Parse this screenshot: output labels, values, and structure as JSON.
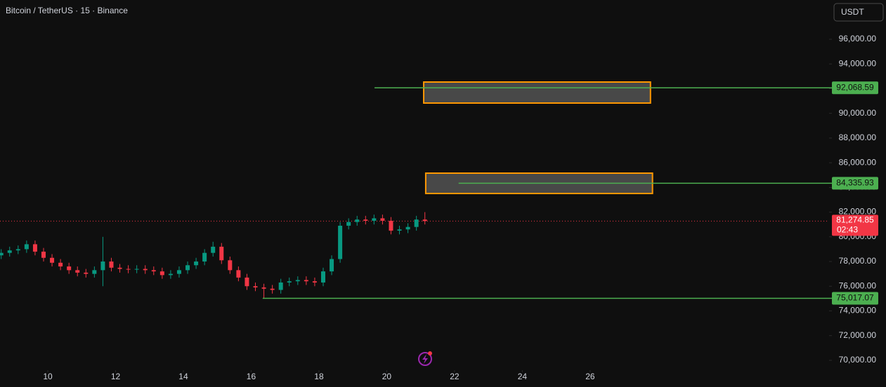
{
  "chart_data": {
    "type": "candlestick",
    "title": "Bitcoin / TetherUS · 15 · Binance",
    "currency": "USDT",
    "x": [
      8.625,
      8.875,
      9.125,
      9.375,
      9.625,
      9.875,
      10.125,
      10.375,
      10.625,
      10.875,
      11.125,
      11.375,
      11.625,
      11.875,
      12.125,
      12.375,
      12.625,
      12.875,
      13.125,
      13.375,
      13.625,
      13.875,
      14.125,
      14.375,
      14.625,
      14.875,
      15.125,
      15.375,
      15.625,
      15.875,
      16.125,
      16.375,
      16.625,
      16.875,
      17.125,
      17.375,
      17.625,
      17.875,
      18.125,
      18.375,
      18.625,
      18.875,
      19.125,
      19.375,
      19.625,
      19.875,
      20.125,
      20.375,
      20.625,
      20.875,
      21.125
    ],
    "open": [
      78500,
      78700,
      78900,
      79000,
      79400,
      78800,
      78300,
      77900,
      77600,
      77300,
      77100,
      77000,
      77300,
      78000,
      77500,
      77400,
      77350,
      77400,
      77300,
      77200,
      76900,
      77000,
      77300,
      77700,
      78000,
      78700,
      79200,
      78100,
      77300,
      76700,
      76000,
      75900,
      75800,
      75700,
      76300,
      76400,
      76500,
      76400,
      76300,
      77200,
      78200,
      80900,
      81200,
      81400,
      81300,
      81500,
      81300,
      80500,
      80600,
      80800,
      81400
    ],
    "high": [
      79000,
      79200,
      79300,
      79700,
      79700,
      79100,
      78600,
      78200,
      77900,
      77600,
      77400,
      77600,
      80000,
      78300,
      77800,
      77700,
      77700,
      77700,
      77600,
      77500,
      77300,
      77600,
      78000,
      78300,
      79000,
      79600,
      79500,
      78400,
      77600,
      77000,
      76300,
      76200,
      76100,
      76600,
      76700,
      76800,
      76800,
      76700,
      77500,
      78500,
      81200,
      81500,
      81700,
      81700,
      81800,
      81800,
      81600,
      80900,
      81100,
      81700,
      82000
    ],
    "low": [
      78200,
      78400,
      78600,
      78700,
      78500,
      78000,
      77600,
      77300,
      77000,
      76800,
      76700,
      76700,
      76000,
      77200,
      77100,
      77050,
      77050,
      77000,
      76900,
      76600,
      76600,
      76700,
      77000,
      77400,
      77700,
      78400,
      77800,
      77000,
      76400,
      75700,
      75600,
      75000,
      75400,
      75400,
      76000,
      76100,
      76100,
      76000,
      76000,
      76900,
      77900,
      80600,
      80900,
      81000,
      81000,
      81000,
      80200,
      80200,
      80300,
      80500,
      81000
    ],
    "close": [
      78700,
      78900,
      79000,
      79400,
      78800,
      78300,
      77900,
      77600,
      77300,
      77100,
      77000,
      77300,
      78000,
      77500,
      77400,
      77350,
      77400,
      77300,
      77200,
      76900,
      77000,
      77300,
      77700,
      78000,
      78700,
      79200,
      78100,
      77300,
      76700,
      76000,
      75900,
      75800,
      75700,
      76300,
      76400,
      76500,
      76400,
      76300,
      77200,
      78200,
      80900,
      81200,
      81400,
      81300,
      81500,
      81300,
      80500,
      80600,
      80800,
      81400,
      81274.85
    ],
    "up_color": "#089981",
    "down_color": "#f23645",
    "xlim": [
      8.59,
      33.05
    ],
    "ylim": [
      69200,
      99180
    ],
    "xticks": [
      10,
      12,
      14,
      16,
      18,
      20,
      22,
      24,
      26
    ],
    "yticks": [
      {
        "value": 70000,
        "label": "70,000.00"
      },
      {
        "value": 72000,
        "label": "72,000.00"
      },
      {
        "value": 74000,
        "label": "74,000.00"
      },
      {
        "value": 76000,
        "label": "76,000.00"
      },
      {
        "value": 78000,
        "label": "78,000.00"
      },
      {
        "value": 80000,
        "label": "80,000.00"
      },
      {
        "value": 82000,
        "label": "82,000.00"
      },
      {
        "value": 84000,
        "label": "84,000.00"
      },
      {
        "value": 86000,
        "label": "86,000.00"
      },
      {
        "value": 88000,
        "label": "88,000.00"
      },
      {
        "value": 90000,
        "label": "90,000.00"
      },
      {
        "value": 92000,
        "label": "92,000.00"
      },
      {
        "value": 94000,
        "label": "94,000.00"
      },
      {
        "value": 96000,
        "label": "96,000.00"
      }
    ],
    "levels": [
      {
        "value": 92068.59,
        "label": "92,068.59",
        "start": 19.64,
        "color": "#4caf50"
      },
      {
        "value": 84335.93,
        "label": "84,335.93",
        "start": 22.12,
        "color": "#4caf50"
      },
      {
        "value": 75017.07,
        "label": "75,017.07",
        "start": 16.34,
        "color": "#4caf50"
      }
    ],
    "zones": [
      {
        "x": [
          21.09,
          27.78
        ],
        "y": [
          90834,
          92537
        ],
        "color": "#ff9800"
      },
      {
        "x": [
          21.15,
          27.84
        ],
        "y": [
          83511,
          85157
        ],
        "color": "#ff9800"
      }
    ],
    "last": {
      "value": 81274.85,
      "label": "81,274.85",
      "countdown": "02:43",
      "color": "#f23645"
    }
  }
}
